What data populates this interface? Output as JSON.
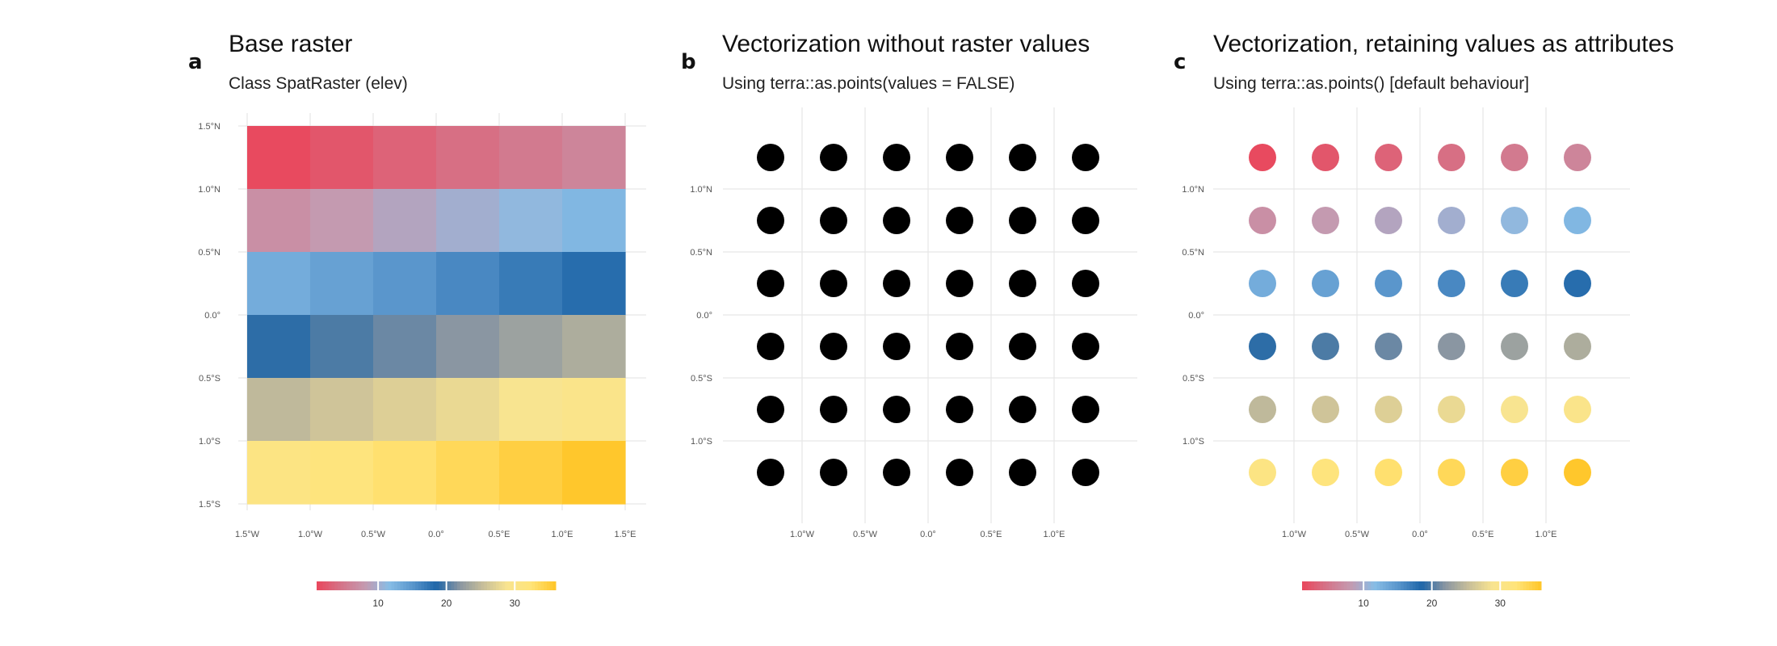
{
  "chart_data": [
    {
      "type": "heatmap",
      "tag": "a",
      "title": "Base raster",
      "subtitle": "Class SpatRaster (elev)",
      "xlim": [
        -1.5,
        1.5
      ],
      "ylim": [
        -1.5,
        1.5
      ],
      "x_ticks": [
        "1.5°W",
        "1.0°W",
        "0.5°W",
        "0.0°",
        "0.5°E",
        "1.0°E",
        "1.5°E"
      ],
      "y_ticks": [
        "1.5°N",
        "1.0°N",
        "0.5°N",
        "0.0°",
        "0.5°S",
        "1.0°S",
        "1.5°S"
      ],
      "x_centers": [
        -1.25,
        -0.75,
        -0.25,
        0.25,
        0.75,
        1.25
      ],
      "y_centers": [
        1.25,
        0.75,
        0.25,
        -0.25,
        -0.75,
        -1.25
      ],
      "values": [
        [
          1,
          2,
          3,
          4,
          5,
          6
        ],
        [
          7,
          8,
          9,
          10,
          11,
          12
        ],
        [
          13,
          14,
          15,
          16,
          17,
          18
        ],
        [
          19,
          20,
          21,
          22,
          23,
          24
        ],
        [
          25,
          26,
          27,
          28,
          29,
          30
        ],
        [
          31,
          32,
          33,
          34,
          35,
          36
        ]
      ],
      "colorbar": {
        "ticks": [
          10,
          20,
          30
        ],
        "min": 1,
        "max": 36
      },
      "grid": true
    },
    {
      "type": "scatter",
      "tag": "b",
      "title": "Vectorization without raster values",
      "subtitle": "Using terra::as.points(values = FALSE)",
      "xlim": [
        -1.5,
        1.5
      ],
      "ylim": [
        -1.5,
        1.5
      ],
      "x_ticks": [
        "1.0°W",
        "0.5°W",
        "0.0°",
        "0.5°E",
        "1.0°E"
      ],
      "y_ticks": [
        "1.0°N",
        "0.5°N",
        "0.0°",
        "0.5°S",
        "1.0°S"
      ],
      "x": [
        -1.25,
        -0.75,
        -0.25,
        0.25,
        0.75,
        1.25
      ],
      "y": [
        1.25,
        0.75,
        0.25,
        -0.25,
        -0.75,
        -1.25
      ],
      "point_color": "#000000",
      "grid": true
    },
    {
      "type": "scatter",
      "tag": "c",
      "title": "Vectorization, retaining values as attributes",
      "subtitle": "Using terra::as.points() [default behaviour]",
      "xlim": [
        -1.5,
        1.5
      ],
      "ylim": [
        -1.5,
        1.5
      ],
      "x_ticks": [
        "1.0°W",
        "0.5°W",
        "0.0°",
        "0.5°E",
        "1.0°E"
      ],
      "y_ticks": [
        "1.0°N",
        "0.5°N",
        "0.0°",
        "0.5°S",
        "1.0°S"
      ],
      "x": [
        -1.25,
        -0.75,
        -0.25,
        0.25,
        0.75,
        1.25
      ],
      "y": [
        1.25,
        0.75,
        0.25,
        -0.25,
        -0.75,
        -1.25
      ],
      "values": [
        [
          1,
          2,
          3,
          4,
          5,
          6
        ],
        [
          7,
          8,
          9,
          10,
          11,
          12
        ],
        [
          13,
          14,
          15,
          16,
          17,
          18
        ],
        [
          19,
          20,
          21,
          22,
          23,
          24
        ],
        [
          25,
          26,
          27,
          28,
          29,
          30
        ],
        [
          31,
          32,
          33,
          34,
          35,
          36
        ]
      ],
      "colorbar": {
        "ticks": [
          10,
          20,
          30
        ],
        "min": 1,
        "max": 36
      },
      "grid": true
    }
  ],
  "palette": [
    "#e84a5f",
    "#d4758a",
    "#c49ab0",
    "#88bde6",
    "#5a96cc",
    "#1e66a8",
    "#8a96a2",
    "#c8bf9a",
    "#f8e490",
    "#ffe47a",
    "#ffc72c"
  ]
}
